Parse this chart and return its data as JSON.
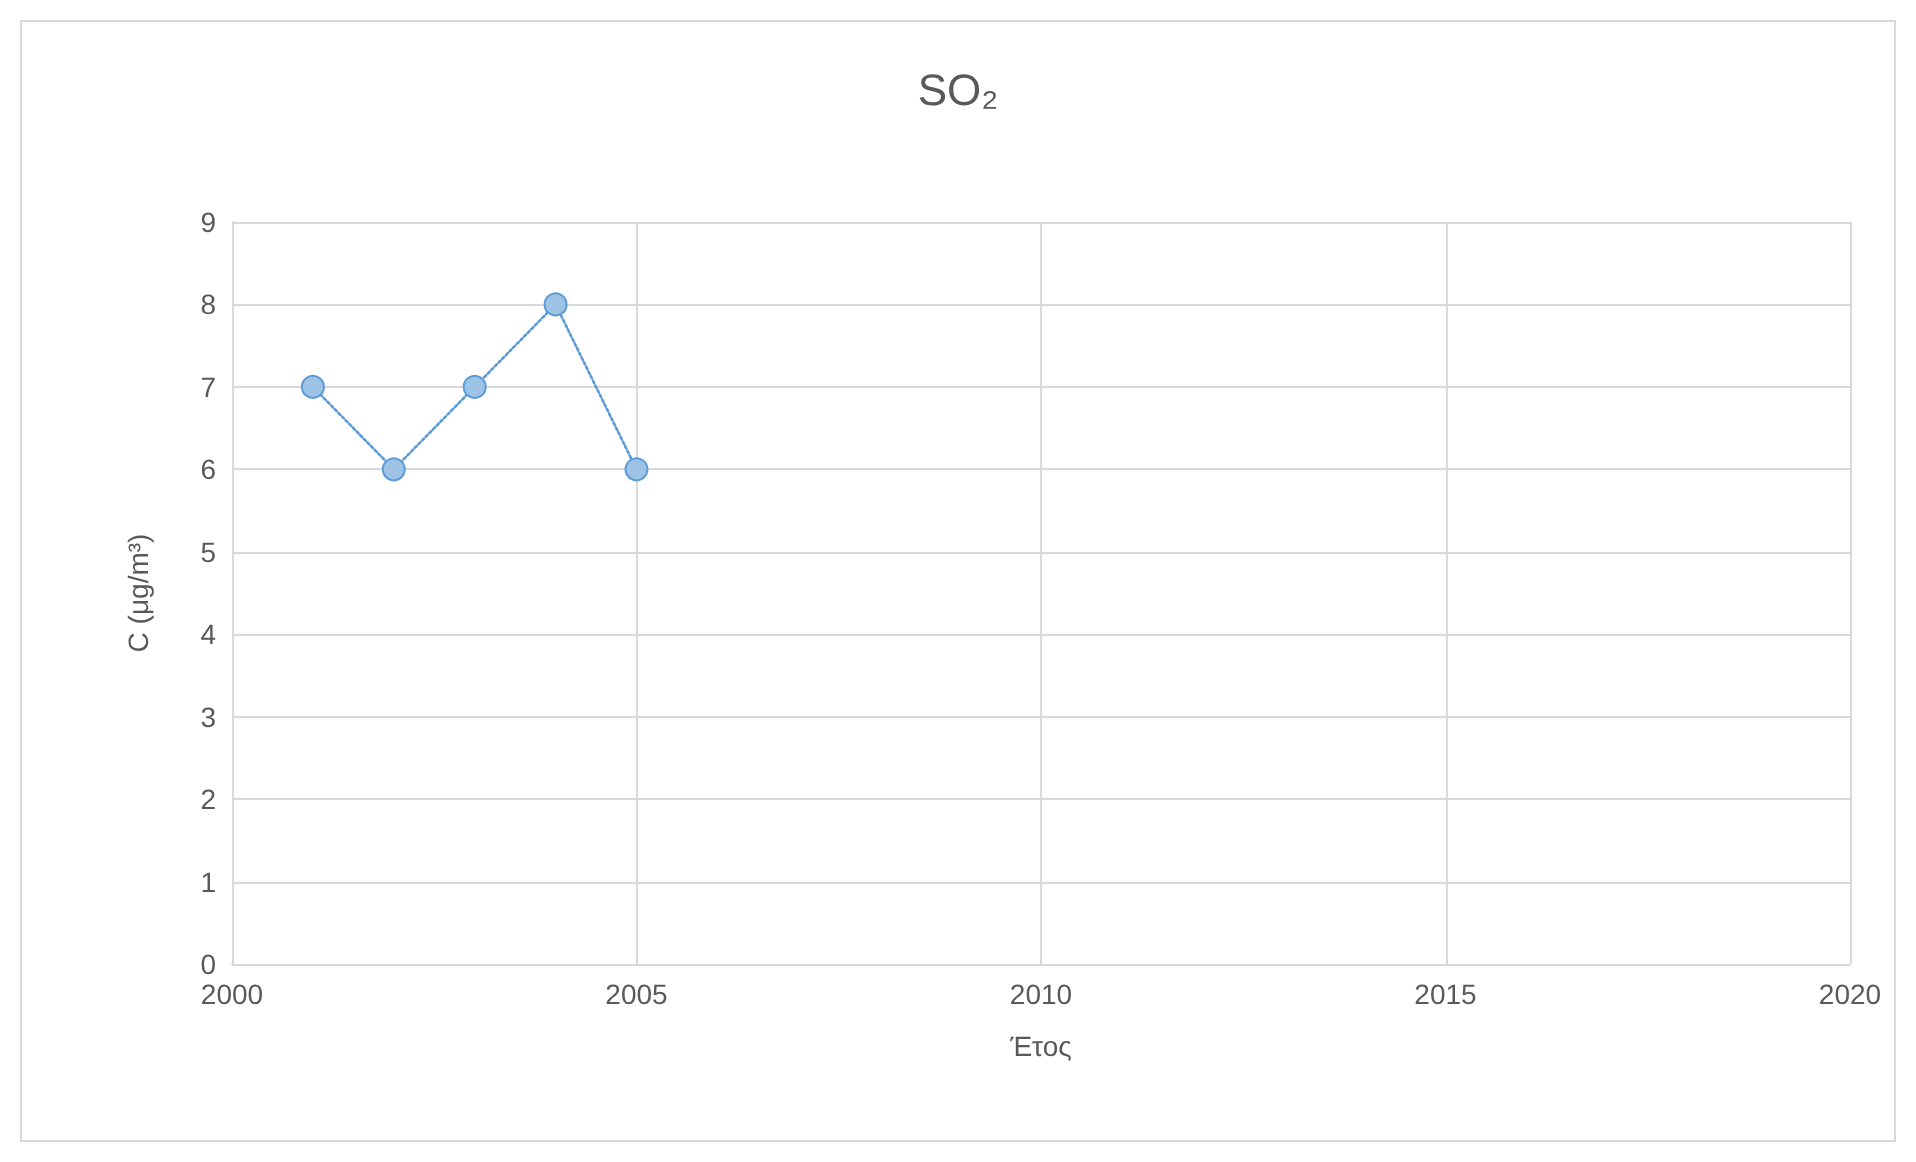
{
  "chart_data": {
    "type": "line",
    "title": "SO₂",
    "xlabel": "Έτος",
    "ylabel": "C (μg/m³)",
    "x": [
      2001,
      2002,
      2003,
      2004,
      2005
    ],
    "series": [
      {
        "color": "#5b9bd5",
        "values": [
          7,
          6,
          7,
          8,
          6
        ]
      }
    ],
    "xlim": [
      2000,
      2020
    ],
    "xticks": [
      2000,
      2005,
      2010,
      2015,
      2020
    ],
    "ylim": [
      0,
      9
    ],
    "yticks": [
      0,
      1,
      2,
      3,
      4,
      5,
      6,
      7,
      8,
      9
    ],
    "grid": true,
    "marker": "circle",
    "line_style": "dotted"
  }
}
